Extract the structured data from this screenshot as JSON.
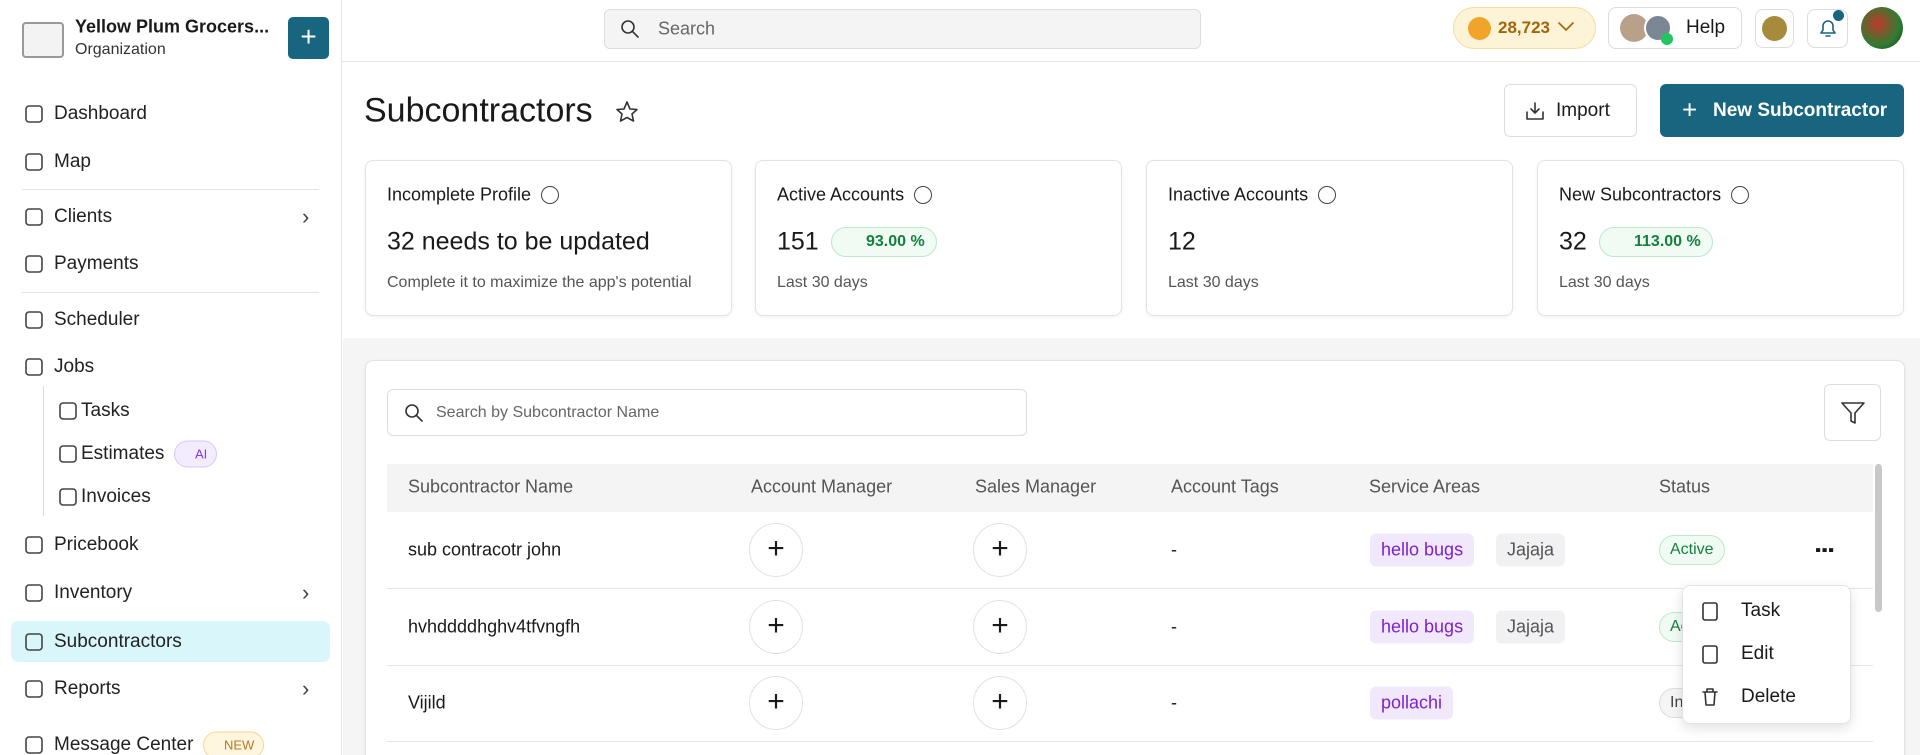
{
  "sidebar": {
    "org_name": "Yellow Plum Grocers...",
    "org_type": "Organization",
    "nav": [
      {
        "label": "Dashboard"
      },
      {
        "label": "Map"
      },
      {
        "label": "Clients"
      },
      {
        "label": "Payments"
      },
      {
        "label": "Scheduler"
      },
      {
        "label": "Jobs"
      },
      {
        "label": "Tasks"
      },
      {
        "label": "Estimates",
        "badge": "AI"
      },
      {
        "label": "Invoices"
      },
      {
        "label": "Pricebook"
      },
      {
        "label": "Inventory"
      },
      {
        "label": "Subcontractors"
      },
      {
        "label": "Reports"
      },
      {
        "label": "Message Center",
        "badge": "NEW"
      }
    ]
  },
  "topbar": {
    "search_placeholder": "Search",
    "coins": "28,723",
    "help": "Help"
  },
  "page": {
    "title": "Subcontractors",
    "import_button": "Import",
    "new_button": "New Subcontractor"
  },
  "stats": [
    {
      "title": "Incomplete Profile",
      "value": "32 needs to be updated",
      "note": "Complete it to maximize the app's potential"
    },
    {
      "title": "Active Accounts",
      "value": "151",
      "badge": "93.00 %",
      "note": "Last 30 days"
    },
    {
      "title": "Inactive Accounts",
      "value": "12",
      "note": "Last 30 days"
    },
    {
      "title": "New Subcontractors",
      "value": "32",
      "badge": "113.00 %",
      "note": "Last 30 days"
    }
  ],
  "table": {
    "search_placeholder": "Search by Subcontractor Name",
    "headers": [
      "Subcontractor Name",
      "Account Manager",
      "Sales Manager",
      "Account Tags",
      "Service Areas",
      "Status"
    ],
    "rows": [
      {
        "name": "sub contracotr john",
        "tags": "-",
        "areas": [
          "hello bugs",
          "Jajaja"
        ],
        "status": "Active"
      },
      {
        "name": "hvhddddhghv4tfvngfh",
        "tags": "-",
        "areas": [
          "hello bugs",
          "Jajaja"
        ],
        "status": "Active"
      },
      {
        "name": "Vijild",
        "tags": "-",
        "areas": [
          "pollachi"
        ],
        "status": "Inactive"
      }
    ]
  },
  "menu": [
    "Task",
    "Edit",
    "Delete"
  ]
}
